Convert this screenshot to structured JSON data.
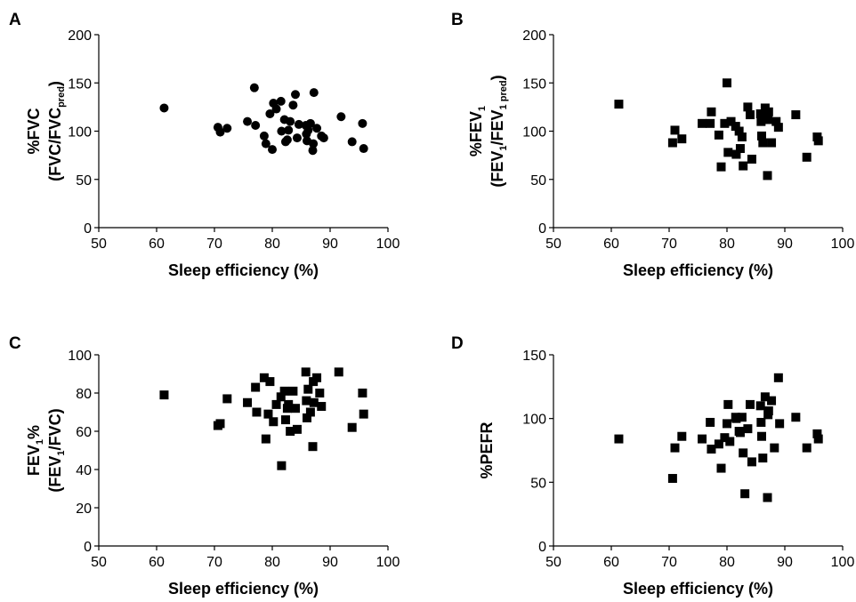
{
  "chart_data": [
    {
      "panel": "A",
      "type": "scatter",
      "marker": "circle",
      "xlabel": "Sleep efficiency (%)",
      "ylabel_lines": [
        [
          {
            "t": "%FVC",
            "sub": false
          }
        ],
        [
          {
            "t": "(FVC/FVC",
            "sub": false
          },
          {
            "t": "pred",
            "sub": true
          },
          {
            "t": ")",
            "sub": false
          }
        ]
      ],
      "xlim": [
        50,
        100
      ],
      "ylim": [
        0,
        200
      ],
      "xticks": [
        "50",
        "60",
        "70",
        "80",
        "90",
        "100"
      ],
      "yticks": [
        "0",
        "50",
        "100",
        "150",
        "200"
      ],
      "points": [
        [
          61.3,
          124
        ],
        [
          70.6,
          104
        ],
        [
          71.0,
          99
        ],
        [
          72.2,
          103
        ],
        [
          75.7,
          110
        ],
        [
          77.1,
          106
        ],
        [
          76.9,
          145
        ],
        [
          78.6,
          95
        ],
        [
          78.9,
          87
        ],
        [
          79.6,
          118
        ],
        [
          80.0,
          81
        ],
        [
          80.2,
          129
        ],
        [
          80.7,
          123
        ],
        [
          81.5,
          131
        ],
        [
          81.6,
          100
        ],
        [
          82.1,
          112
        ],
        [
          82.3,
          89
        ],
        [
          82.6,
          91
        ],
        [
          82.8,
          101
        ],
        [
          83.1,
          110
        ],
        [
          83.6,
          127
        ],
        [
          84.0,
          138
        ],
        [
          84.3,
          93
        ],
        [
          84.6,
          107
        ],
        [
          85.8,
          106
        ],
        [
          85.9,
          97
        ],
        [
          86.0,
          90
        ],
        [
          86.2,
          101
        ],
        [
          86.6,
          108
        ],
        [
          87.0,
          80
        ],
        [
          87.1,
          87
        ],
        [
          87.2,
          140
        ],
        [
          87.7,
          103
        ],
        [
          88.5,
          95
        ],
        [
          88.9,
          93
        ],
        [
          91.9,
          115
        ],
        [
          93.8,
          89
        ],
        [
          95.6,
          108
        ],
        [
          95.8,
          82
        ]
      ]
    },
    {
      "panel": "B",
      "type": "scatter",
      "marker": "square",
      "xlabel": "Sleep efficiency (%)",
      "ylabel_lines": [
        [
          {
            "t": "%FEV",
            "sub": false
          },
          {
            "t": "1",
            "sub": true
          }
        ],
        [
          {
            "t": "(FEV",
            "sub": false
          },
          {
            "t": "1",
            "sub": true
          },
          {
            "t": "/FEV",
            "sub": false
          },
          {
            "t": "1 pred",
            "sub": true
          },
          {
            "t": ")",
            "sub": false
          }
        ]
      ],
      "xlim": [
        50,
        100
      ],
      "ylim": [
        0,
        200
      ],
      "xticks": [
        "50",
        "60",
        "70",
        "80",
        "90",
        "100"
      ],
      "yticks": [
        "0",
        "50",
        "100",
        "150",
        "200"
      ],
      "points": [
        [
          61.3,
          128
        ],
        [
          70.6,
          88
        ],
        [
          71.0,
          101
        ],
        [
          72.2,
          92
        ],
        [
          75.7,
          108
        ],
        [
          77.1,
          108
        ],
        [
          77.3,
          120
        ],
        [
          78.6,
          96
        ],
        [
          79.0,
          63
        ],
        [
          79.6,
          108
        ],
        [
          80.0,
          150
        ],
        [
          80.2,
          78
        ],
        [
          80.7,
          110
        ],
        [
          81.5,
          105
        ],
        [
          81.6,
          76
        ],
        [
          82.1,
          100
        ],
        [
          82.3,
          82
        ],
        [
          82.6,
          94
        ],
        [
          82.8,
          64
        ],
        [
          83.6,
          125
        ],
        [
          84.0,
          117
        ],
        [
          84.3,
          71
        ],
        [
          85.8,
          118
        ],
        [
          85.9,
          110
        ],
        [
          86.0,
          95
        ],
        [
          86.2,
          88
        ],
        [
          86.6,
          124
        ],
        [
          87.0,
          54
        ],
        [
          87.1,
          112
        ],
        [
          87.2,
          120
        ],
        [
          87.7,
          88
        ],
        [
          88.5,
          110
        ],
        [
          88.9,
          104
        ],
        [
          91.9,
          117
        ],
        [
          93.8,
          73
        ],
        [
          95.6,
          94
        ],
        [
          95.8,
          90
        ]
      ]
    },
    {
      "panel": "C",
      "type": "scatter",
      "marker": "square",
      "xlabel": "Sleep efficiency (%)",
      "ylabel_lines": [
        [
          {
            "t": "FEV",
            "sub": false
          },
          {
            "t": "1",
            "sub": true
          },
          {
            "t": "%",
            "sub": false
          }
        ],
        [
          {
            "t": "(FEV",
            "sub": false
          },
          {
            "t": "1",
            "sub": true
          },
          {
            "t": "/FVC)",
            "sub": false
          }
        ]
      ],
      "xlim": [
        50,
        100
      ],
      "ylim": [
        0,
        100
      ],
      "xticks": [
        "50",
        "60",
        "70",
        "80",
        "90",
        "100"
      ],
      "yticks": [
        "0",
        "20",
        "40",
        "60",
        "80",
        "100"
      ],
      "points": [
        [
          61.3,
          79
        ],
        [
          70.6,
          63
        ],
        [
          71.0,
          64
        ],
        [
          72.2,
          77
        ],
        [
          75.7,
          75
        ],
        [
          77.1,
          83
        ],
        [
          77.3,
          70
        ],
        [
          78.6,
          88
        ],
        [
          78.9,
          56
        ],
        [
          79.3,
          69
        ],
        [
          79.6,
          86
        ],
        [
          80.2,
          65
        ],
        [
          80.7,
          74
        ],
        [
          81.5,
          78
        ],
        [
          81.6,
          42
        ],
        [
          82.1,
          81
        ],
        [
          82.3,
          66
        ],
        [
          82.6,
          72
        ],
        [
          82.8,
          74
        ],
        [
          83.1,
          60
        ],
        [
          83.6,
          81
        ],
        [
          84.0,
          72
        ],
        [
          84.3,
          61
        ],
        [
          85.8,
          91
        ],
        [
          85.9,
          76
        ],
        [
          86.0,
          67
        ],
        [
          86.2,
          82
        ],
        [
          86.6,
          70
        ],
        [
          87.0,
          52
        ],
        [
          87.1,
          86
        ],
        [
          87.2,
          75
        ],
        [
          87.7,
          88
        ],
        [
          88.2,
          80
        ],
        [
          88.5,
          73
        ],
        [
          91.5,
          91
        ],
        [
          93.8,
          62
        ],
        [
          95.6,
          80
        ],
        [
          95.8,
          69
        ]
      ]
    },
    {
      "panel": "D",
      "type": "scatter",
      "marker": "square",
      "xlabel": "Sleep efficiency (%)",
      "ylabel_lines": [
        [
          {
            "t": "%PEFR",
            "sub": false
          }
        ]
      ],
      "xlim": [
        50,
        100
      ],
      "ylim": [
        0,
        150
      ],
      "xticks": [
        "50",
        "60",
        "70",
        "80",
        "90",
        "100"
      ],
      "yticks": [
        "0",
        "50",
        "100",
        "150"
      ],
      "points": [
        [
          61.3,
          84
        ],
        [
          70.6,
          53
        ],
        [
          71.0,
          77
        ],
        [
          72.2,
          86
        ],
        [
          75.7,
          84
        ],
        [
          77.1,
          97
        ],
        [
          77.3,
          76
        ],
        [
          78.6,
          80
        ],
        [
          79.0,
          61
        ],
        [
          79.6,
          85
        ],
        [
          80.0,
          96
        ],
        [
          80.2,
          111
        ],
        [
          80.5,
          82
        ],
        [
          81.5,
          101
        ],
        [
          81.6,
          100
        ],
        [
          82.1,
          90
        ],
        [
          82.3,
          89
        ],
        [
          82.6,
          101
        ],
        [
          82.8,
          73
        ],
        [
          83.1,
          41
        ],
        [
          83.6,
          92
        ],
        [
          84.0,
          111
        ],
        [
          84.3,
          66
        ],
        [
          85.8,
          110
        ],
        [
          85.9,
          97
        ],
        [
          86.0,
          86
        ],
        [
          86.2,
          69
        ],
        [
          86.6,
          117
        ],
        [
          87.0,
          38
        ],
        [
          87.1,
          103
        ],
        [
          87.2,
          106
        ],
        [
          87.7,
          114
        ],
        [
          88.2,
          77
        ],
        [
          88.9,
          132
        ],
        [
          89.1,
          96
        ],
        [
          91.9,
          101
        ],
        [
          93.8,
          77
        ],
        [
          95.6,
          88
        ],
        [
          95.8,
          84
        ]
      ]
    }
  ]
}
